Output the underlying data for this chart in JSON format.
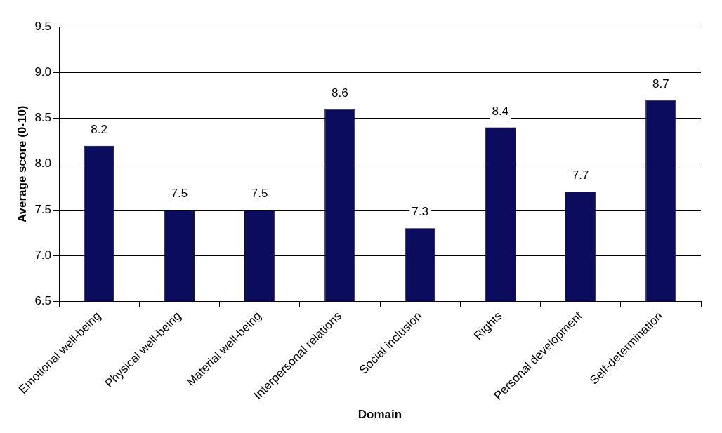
{
  "chart_data": {
    "type": "bar",
    "xlabel": "Domain",
    "ylabel": "Average score (0-10)",
    "categories": [
      "Emotional well-being",
      "Physical well-being",
      "Material well-being",
      "Interpersonal relations",
      "Social inclusion",
      "Rights",
      "Personal development",
      "Self-determination"
    ],
    "values": [
      8.2,
      7.5,
      7.5,
      8.6,
      7.3,
      8.4,
      7.7,
      8.7
    ],
    "color": "#0c0c5e",
    "ylim": [
      6.5,
      9.5
    ],
    "yticks": [
      6.5,
      {
        "value": 7,
        "label": "7.0"
      },
      7.5,
      {
        "value": 8,
        "label": "8.0"
      },
      8.5,
      {
        "value": 9,
        "label": "9.0"
      },
      9.5
    ],
    "grid": "y",
    "data_labels": true
  }
}
